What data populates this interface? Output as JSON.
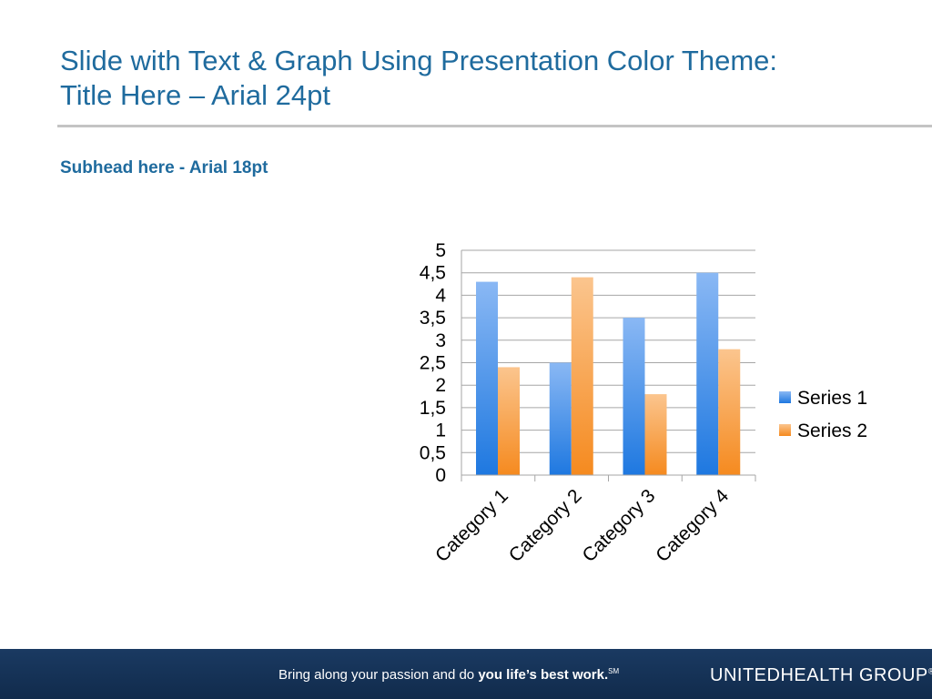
{
  "slide": {
    "title_line1": "Slide with Text & Graph Using Presentation Color Theme:",
    "title_line2": "Title Here – Arial 24pt",
    "subhead": "Subhead here - Arial 18pt"
  },
  "footer": {
    "tagline_prefix": "Bring along your passion and do ",
    "tagline_strong": "you life’s best work.",
    "tagline_mark": "SM",
    "logo_text": "UNITEDHEALTH GROUP",
    "logo_mark": "®"
  },
  "colors": {
    "title": "#1f6b9e",
    "series1_top": "#8ab8f4",
    "series1_bottom": "#1e78e0",
    "series2_top": "#fbc58e",
    "series2_bottom": "#f58a1f",
    "gridline": "#a6a6a6",
    "footer_bg": "#14325a"
  },
  "chart_data": {
    "type": "bar",
    "title": "",
    "xlabel": "",
    "ylabel": "",
    "categories": [
      "Category 1",
      "Category 2",
      "Category 3",
      "Category 4"
    ],
    "series": [
      {
        "name": "Series 1",
        "values": [
          4.3,
          2.5,
          3.5,
          4.5
        ]
      },
      {
        "name": "Series 2",
        "values": [
          2.4,
          4.4,
          1.8,
          2.8
        ]
      }
    ],
    "ylim": [
      0,
      5
    ],
    "y_ticks": [
      0,
      0.5,
      1,
      1.5,
      2,
      2.5,
      3,
      3.5,
      4,
      4.5,
      5
    ],
    "y_tick_labels": [
      "0",
      "0,5",
      "1",
      "1,5",
      "2",
      "2,5",
      "3",
      "3,5",
      "4",
      "4,5",
      "5"
    ],
    "grid": true,
    "legend": "right"
  }
}
